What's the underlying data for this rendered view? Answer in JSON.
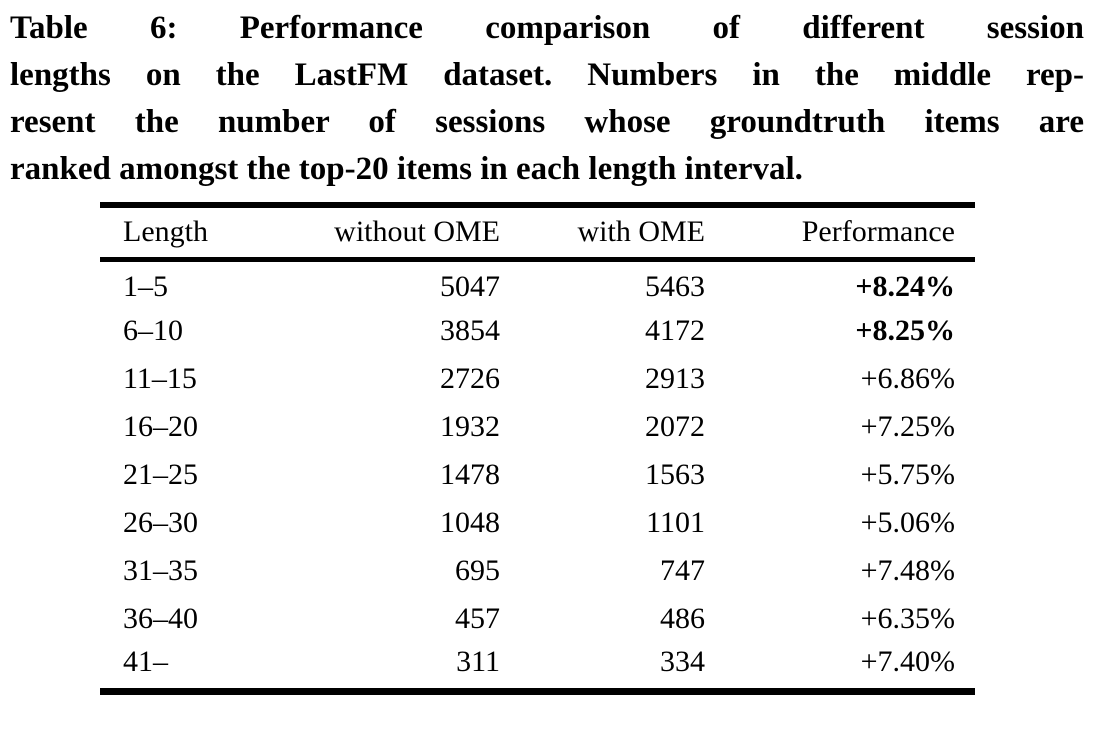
{
  "caption": {
    "lines": [
      "Table 6: Performance comparison of different session",
      "lengths on the LastFM dataset. Numbers in the middle rep-",
      "resent the number of sessions whose groundtruth items are",
      "ranked amongst the top-20 items in each length interval."
    ]
  },
  "table": {
    "columns": [
      "Length",
      "without OME",
      "with OME",
      "Performance"
    ],
    "rows": [
      {
        "length": "1–5",
        "without_ome": "5047",
        "with_ome": "5463",
        "performance": "+8.24%",
        "bold": true
      },
      {
        "length": "6–10",
        "without_ome": "3854",
        "with_ome": "4172",
        "performance": "+8.25%",
        "bold": true
      },
      {
        "length": "11–15",
        "without_ome": "2726",
        "with_ome": "2913",
        "performance": "+6.86%",
        "bold": false
      },
      {
        "length": "16–20",
        "without_ome": "1932",
        "with_ome": "2072",
        "performance": "+7.25%",
        "bold": false
      },
      {
        "length": "21–25",
        "without_ome": "1478",
        "with_ome": "1563",
        "performance": "+5.75%",
        "bold": false
      },
      {
        "length": "26–30",
        "without_ome": "1048",
        "with_ome": "1101",
        "performance": "+5.06%",
        "bold": false
      },
      {
        "length": "31–35",
        "without_ome": "695",
        "with_ome": "747",
        "performance": "+7.48%",
        "bold": false
      },
      {
        "length": "36–40",
        "without_ome": "457",
        "with_ome": "486",
        "performance": "+6.35%",
        "bold": false
      },
      {
        "length": "41–",
        "without_ome": "311",
        "with_ome": "334",
        "performance": "+7.40%",
        "bold": false
      }
    ]
  },
  "colors": {
    "text": "#000000",
    "background": "#ffffff"
  }
}
